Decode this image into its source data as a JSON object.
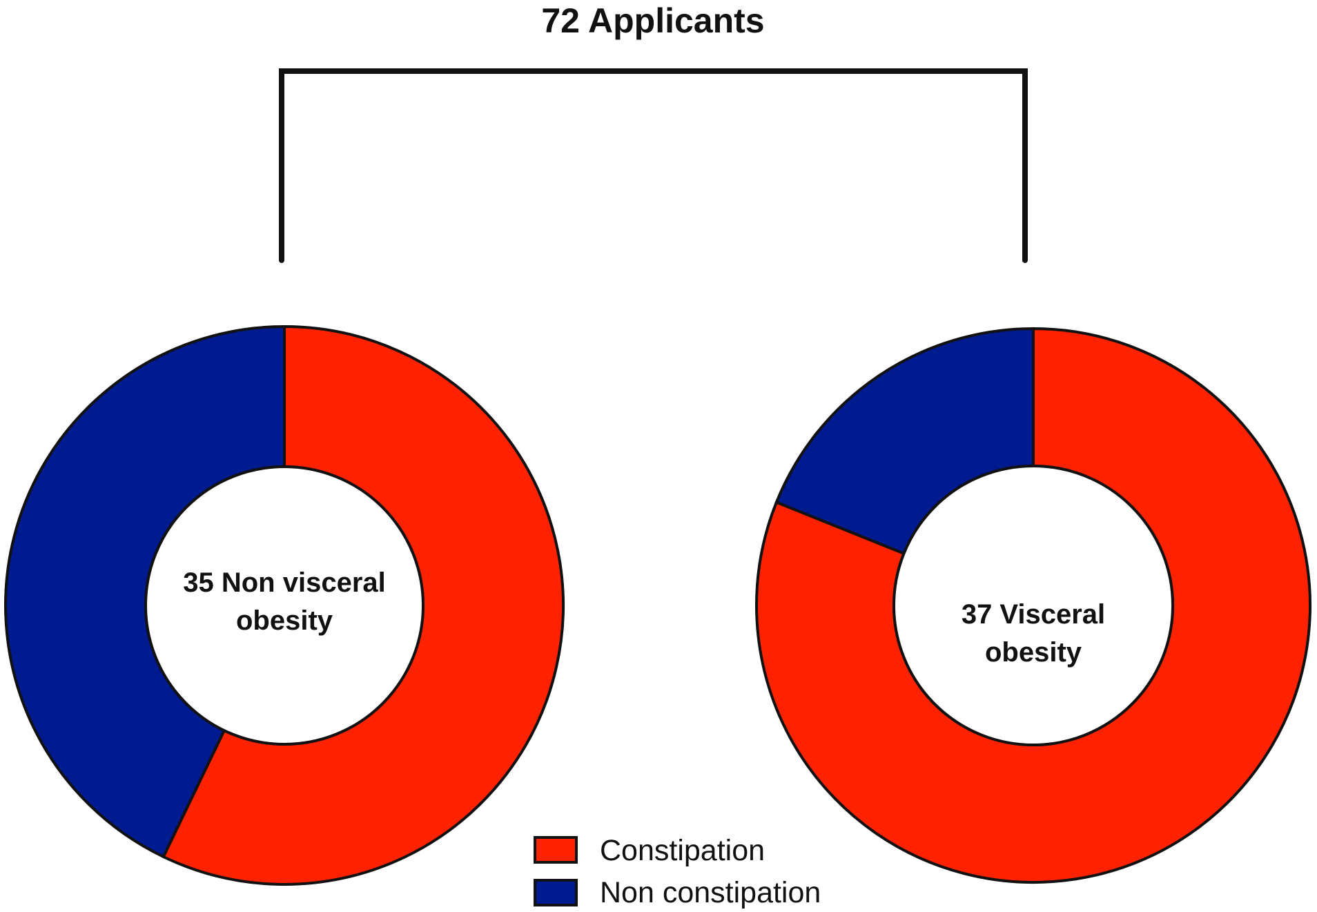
{
  "chart_data": {
    "type": "pie",
    "title": "72 Applicants",
    "legend": {
      "placement": "bottom-center",
      "entries": [
        {
          "label": "Constipation",
          "color": "#ff2200"
        },
        {
          "label": "Non constipation",
          "color": "#001a8f"
        }
      ]
    },
    "charts": [
      {
        "center_label": [
          "35 Non visceral",
          "obesity"
        ],
        "slices": [
          {
            "name": "Constipation",
            "value": 20,
            "color": "#ff2200"
          },
          {
            "name": "Non constipation",
            "value": 15,
            "color": "#001a8f"
          }
        ]
      },
      {
        "center_label": [
          "37 Visceral",
          "obesity"
        ],
        "slices": [
          {
            "name": "Constipation",
            "value": 30,
            "color": "#ff2200"
          },
          {
            "name": "Non constipation",
            "value": 7,
            "color": "#001a8f"
          }
        ]
      }
    ]
  }
}
